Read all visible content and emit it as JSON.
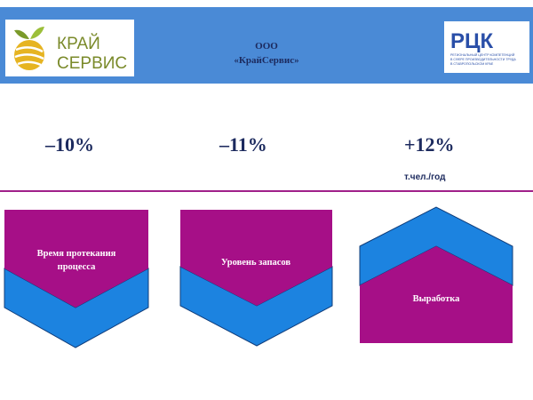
{
  "header": {
    "logo_left": {
      "line1": "КРАЙ",
      "line2": "СЕРВИС"
    },
    "company_line1": "ООО",
    "company_line2": "«КрайСервис»",
    "logo_right": {
      "mark": "РЦК",
      "caption_line1": "РЕГИОНАЛЬНЫЙ ЦЕНТР КОМПЕТЕНЦИЙ",
      "caption_line2": "В СФЕРЕ ПРОИЗВОДИТЕЛЬНОСТИ ТРУДА",
      "caption_line3": "В СТАВРОПОЛЬСКОМ КРАЕ"
    }
  },
  "metrics": [
    {
      "value": "–10%",
      "unit": ""
    },
    {
      "value": "–11%",
      "unit": ""
    },
    {
      "value": "+12%",
      "unit": "т.чел./год"
    }
  ],
  "cards": [
    {
      "label": "Время протекания процесса",
      "direction": "down"
    },
    {
      "label": "Уровень запасов",
      "direction": "down"
    },
    {
      "label": "Выработка",
      "direction": "up"
    }
  ],
  "colors": {
    "header_bg": "#4a8ad6",
    "magenta": "#a60f87",
    "blue": "#1c83e0",
    "dark_text": "#1c2a5e",
    "logo_green": "#7a9a2a",
    "logo_yellow": "#e6b422"
  }
}
